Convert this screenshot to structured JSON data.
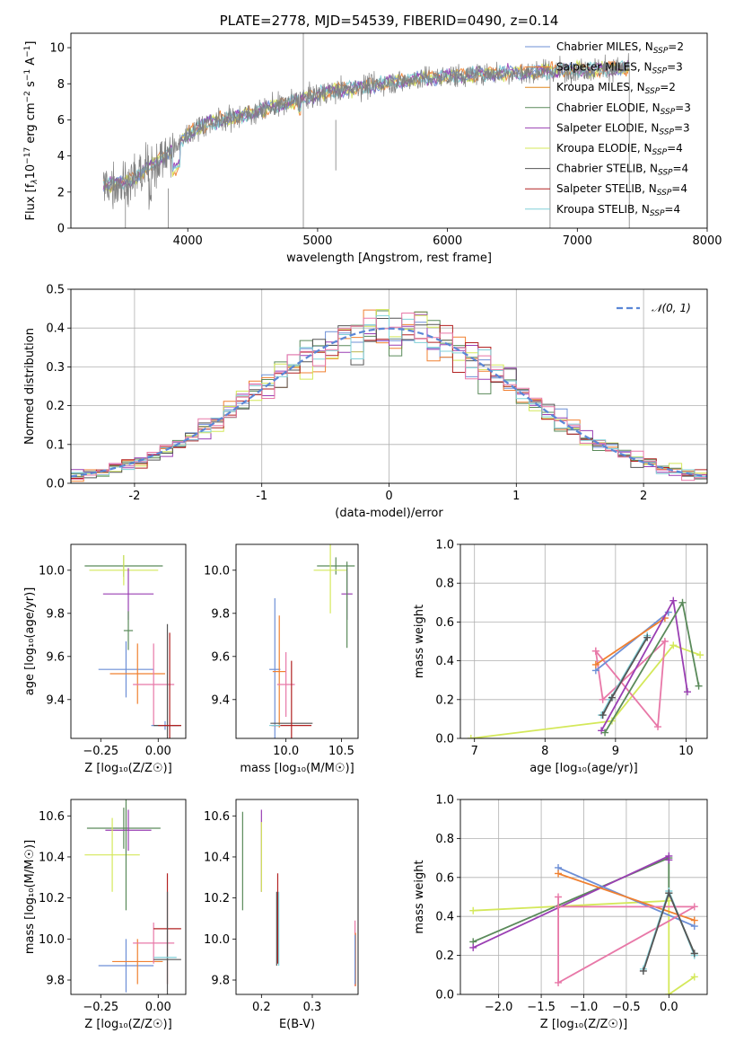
{
  "colors": {
    "Chabrier MILES": "#6d8fd6",
    "Salpeter MILES": "#f08030",
    "Kroupa MILES": "#e08820",
    "Chabrier ELODIE": "#5a8a5a",
    "Salpeter ELODIE": "#9a3fb3",
    "Kroupa ELODIE": "#d4e85a",
    "Chabrier STELIB": "#555555",
    "Salpeter STELIB": "#b22222",
    "Kroupa STELIB": "#80d0d8",
    "pink": "#e878a8",
    "dashed": "#5a86d6"
  },
  "chart_data": [
    {
      "id": "spectrum",
      "type": "line",
      "title": "PLATE=2778, MJD=54539, FIBERID=0490, z=0.14",
      "xlabel": "wavelength [Angstrom, rest frame]",
      "ylabel_parts": [
        "Flux [f",
        "λ",
        "10",
        "−17",
        " erg cm",
        "−2",
        " s",
        "−1",
        " A",
        "−1",
        "]"
      ],
      "xlim": [
        3100,
        8000
      ],
      "ylim": [
        0,
        10.8
      ],
      "xticks": [
        4000,
        5000,
        6000,
        7000,
        8000
      ],
      "yticks": [
        0,
        2,
        4,
        6,
        8,
        10
      ],
      "continuum_x": [
        3350,
        3500,
        3600,
        3700,
        3800,
        3900,
        4000,
        4100,
        4200,
        4400,
        4600,
        4800,
        4900,
        5000,
        5200,
        5400,
        5600,
        5800,
        6000,
        6200,
        6400,
        6600,
        6800,
        7000,
        7200,
        7400
      ],
      "continuum_y": [
        2.4,
        2.5,
        2.8,
        3.4,
        3.9,
        4.4,
        5.2,
        5.7,
        5.9,
        6.2,
        6.6,
        7.0,
        7.2,
        7.4,
        7.7,
        7.9,
        8.1,
        8.3,
        8.4,
        8.5,
        8.6,
        8.6,
        8.7,
        8.8,
        8.8,
        8.9
      ],
      "legend": [
        {
          "label": "Chabrier MILES, N",
          "sub": "SSP",
          "eq": "=2",
          "color_key": "Chabrier MILES"
        },
        {
          "label": "Salpeter MILES, N",
          "sub": "SSP",
          "eq": "=3",
          "color_key": "Salpeter MILES"
        },
        {
          "label": "Kroupa MILES, N",
          "sub": "SSP",
          "eq": "=2",
          "color_key": "Kroupa MILES"
        },
        {
          "label": "Chabrier ELODIE, N",
          "sub": "SSP",
          "eq": "=3",
          "color_key": "Chabrier ELODIE"
        },
        {
          "label": "Salpeter ELODIE, N",
          "sub": "SSP",
          "eq": "=3",
          "color_key": "Salpeter ELODIE"
        },
        {
          "label": "Kroupa ELODIE, N",
          "sub": "SSP",
          "eq": "=4",
          "color_key": "Kroupa ELODIE"
        },
        {
          "label": "Chabrier STELIB, N",
          "sub": "SSP",
          "eq": "=4",
          "color_key": "Chabrier STELIB"
        },
        {
          "label": "Salpeter STELIB, N",
          "sub": "SSP",
          "eq": "=4",
          "color_key": "Salpeter STELIB"
        },
        {
          "label": "Kroupa STELIB, N",
          "sub": "SSP",
          "eq": "=4",
          "color_key": "Kroupa STELIB"
        }
      ]
    },
    {
      "id": "residuals",
      "type": "line",
      "xlabel": "(data-model)/error",
      "ylabel": "Normed distribution",
      "xlim": [
        -2.5,
        2.5
      ],
      "ylim": [
        0,
        0.5
      ],
      "xticks": [
        -2,
        -1,
        0,
        1,
        2
      ],
      "yticks": [
        0.0,
        0.1,
        0.2,
        0.3,
        0.4,
        0.5
      ],
      "legend_label": "𝒩(0, 1)",
      "grid": true
    },
    {
      "id": "age_vs_Z",
      "type": "scatter",
      "xlabel": "Z [log₁₀(Z/Z☉)]",
      "ylabel": "age  [log₁₀(age/yr)]",
      "xlim": [
        -0.38,
        0.12
      ],
      "ylim": [
        9.22,
        10.12
      ],
      "xticks": [
        -0.25,
        0.0
      ],
      "xticklabels": [
        "−0.25",
        "0.00"
      ],
      "yticks": [
        9.4,
        9.6,
        9.8,
        10.0
      ],
      "points": [
        {
          "x": -0.15,
          "y": 10.02,
          "xerr": 0.17,
          "yerr": 0.05,
          "c": "Chabrier ELODIE"
        },
        {
          "x": -0.15,
          "y": 10.0,
          "xerr": 0.15,
          "yerr": 0.07,
          "c": "Kroupa ELODIE"
        },
        {
          "x": -0.13,
          "y": 9.89,
          "xerr": 0.11,
          "yerr": 0.12,
          "c": "Salpeter ELODIE"
        },
        {
          "x": -0.13,
          "y": 9.72,
          "xerr": 0.02,
          "yerr": 0.09,
          "c": "Chabrier ELODIE"
        },
        {
          "x": -0.14,
          "y": 9.54,
          "xerr": 0.12,
          "yerr": 0.13,
          "c": "Chabrier MILES"
        },
        {
          "x": -0.09,
          "y": 9.52,
          "xerr": 0.12,
          "yerr": 0.14,
          "c": "Salpeter MILES"
        },
        {
          "x": -0.02,
          "y": 9.47,
          "xerr": 0.09,
          "yerr": 0.19,
          "c": "pink"
        },
        {
          "x": 0.03,
          "y": 9.28,
          "xerr": 0.06,
          "yerr": 0.02,
          "c": "Chabrier MILES"
        },
        {
          "x": 0.04,
          "y": 9.28,
          "xerr": 0.06,
          "yerr": 0.47,
          "c": "Chabrier STELIB"
        },
        {
          "x": 0.05,
          "y": 9.28,
          "xerr": 0.05,
          "yerr": 0.43,
          "c": "Salpeter STELIB"
        }
      ]
    },
    {
      "id": "age_vs_mass",
      "type": "scatter",
      "xlabel": "mass [log₁₀(M/M☉)]",
      "xlim": [
        9.55,
        10.65
      ],
      "ylim": [
        9.22,
        10.12
      ],
      "xticks": [
        10.0,
        10.5
      ],
      "xticklabels": [
        "10.0",
        "10.5"
      ],
      "yticks": [
        9.4,
        9.6,
        9.8,
        10.0
      ],
      "points": [
        {
          "x": 10.45,
          "y": 10.02,
          "xerr": 0.17,
          "yerr": 0.04,
          "c": "Chabrier ELODIE"
        },
        {
          "x": 10.4,
          "y": 10.0,
          "xerr": 0.15,
          "yerr": 0.2,
          "c": "Kroupa ELODIE"
        },
        {
          "x": 10.55,
          "y": 9.89,
          "xerr": 0.05,
          "yerr": 0.12,
          "c": "Salpeter ELODIE"
        },
        {
          "x": 10.55,
          "y": 9.84,
          "xerr": 0.0,
          "yerr": 0.2,
          "c": "Chabrier ELODIE"
        },
        {
          "x": 9.9,
          "y": 9.54,
          "xerr": 0.05,
          "yerr": 0.33,
          "c": "Chabrier MILES"
        },
        {
          "x": 9.94,
          "y": 9.53,
          "xerr": 0.06,
          "yerr": 0.26,
          "c": "Salpeter MILES"
        },
        {
          "x": 10.0,
          "y": 9.47,
          "xerr": 0.08,
          "yerr": 0.15,
          "c": "pink"
        },
        {
          "x": 10.05,
          "y": 9.29,
          "xerr": 0.19,
          "yerr": 0.0,
          "c": "Chabrier STELIB"
        },
        {
          "x": 10.05,
          "y": 9.28,
          "xerr": 0.18,
          "yerr": 0.3,
          "c": "Salpeter STELIB"
        },
        {
          "x": 9.9,
          "y": 9.28,
          "xerr": 0.05,
          "yerr": 0.0,
          "c": "Kroupa STELIB"
        }
      ]
    },
    {
      "id": "weight_vs_age",
      "type": "line",
      "xlabel": "age  [log₁₀(age/yr)]",
      "ylabel": "mass weight",
      "xlim": [
        6.8,
        10.3
      ],
      "ylim": [
        0.0,
        1.0
      ],
      "xticks": [
        7,
        8,
        9,
        10
      ],
      "yticks": [
        0.0,
        0.2,
        0.4,
        0.6,
        0.8,
        1.0
      ],
      "grid": true,
      "series": [
        {
          "c": "Kroupa ELODIE",
          "x": [
            6.95,
            8.95,
            9.82,
            10.2
          ],
          "y": [
            0.0,
            0.09,
            0.48,
            0.43
          ]
        },
        {
          "c": "pink",
          "x": [
            8.72,
            9.6,
            9.7,
            8.82,
            8.72
          ],
          "y": [
            0.45,
            0.06,
            0.5,
            0.2,
            0.45
          ]
        },
        {
          "c": "Chabrier MILES",
          "x": [
            8.72,
            9.75
          ],
          "y": [
            0.35,
            0.65
          ]
        },
        {
          "c": "Salpeter MILES",
          "x": [
            8.72,
            9.7
          ],
          "y": [
            0.38,
            0.62
          ]
        },
        {
          "c": "Salpeter ELODIE",
          "x": [
            8.8,
            9.82,
            10.02
          ],
          "y": [
            0.04,
            0.71,
            0.24
          ]
        },
        {
          "c": "Chabrier ELODIE",
          "x": [
            8.85,
            9.95,
            10.18
          ],
          "y": [
            0.03,
            0.7,
            0.27
          ]
        },
        {
          "c": "Kroupa STELIB",
          "x": [
            8.8,
            8.92,
            9.45
          ],
          "y": [
            0.12,
            0.2,
            0.53
          ]
        },
        {
          "c": "Chabrier STELIB",
          "x": [
            8.82,
            8.95,
            9.45
          ],
          "y": [
            0.12,
            0.21,
            0.52
          ]
        }
      ]
    },
    {
      "id": "mass_vs_Z",
      "type": "scatter",
      "xlabel": "Z [log₁₀(Z/Z☉)]",
      "ylabel": "mass [log₁₀(M/M☉)]",
      "xlim": [
        -0.38,
        0.12
      ],
      "ylim": [
        9.73,
        10.68
      ],
      "xticks": [
        -0.25,
        0.0
      ],
      "xticklabels": [
        "−0.25",
        "0.00"
      ],
      "yticks": [
        9.8,
        10.0,
        10.2,
        10.4,
        10.6
      ],
      "points": [
        {
          "x": -0.15,
          "y": 10.54,
          "xerr": 0.16,
          "yerr": 0.1,
          "c": "Chabrier ELODIE"
        },
        {
          "x": -0.13,
          "y": 10.53,
          "xerr": 0.1,
          "yerr": 0.1,
          "c": "Salpeter ELODIE"
        },
        {
          "x": -0.2,
          "y": 10.41,
          "xerr": 0.12,
          "yerr": 0.18,
          "c": "Kroupa ELODIE"
        },
        {
          "x": -0.14,
          "y": 10.41,
          "xerr": 0.0,
          "yerr": 0.27,
          "c": "Chabrier ELODIE"
        },
        {
          "x": -0.14,
          "y": 9.87,
          "xerr": 0.12,
          "yerr": 0.13,
          "c": "Chabrier MILES"
        },
        {
          "x": -0.09,
          "y": 9.89,
          "xerr": 0.11,
          "yerr": 0.11,
          "c": "Salpeter MILES"
        },
        {
          "x": -0.02,
          "y": 9.98,
          "xerr": 0.09,
          "yerr": 0.1,
          "c": "pink"
        },
        {
          "x": 0.04,
          "y": 10.05,
          "xerr": 0.06,
          "yerr": 0.27,
          "c": "Salpeter STELIB"
        },
        {
          "x": 0.04,
          "y": 9.9,
          "xerr": 0.06,
          "yerr": 0.33,
          "c": "Chabrier STELIB"
        },
        {
          "x": 0.03,
          "y": 9.91,
          "xerr": 0.05,
          "yerr": 0.0,
          "c": "Kroupa STELIB"
        }
      ]
    },
    {
      "id": "mass_vs_EBV",
      "type": "scatter",
      "xlabel": "E(B-V)",
      "xlim": [
        0.15,
        0.39
      ],
      "ylim": [
        9.73,
        10.68
      ],
      "xticks": [
        0.2,
        0.3
      ],
      "xticklabels": [
        "0.2",
        "0.3"
      ],
      "yticks": [
        9.8,
        10.0,
        10.2,
        10.4,
        10.6
      ],
      "points": [
        {
          "x": 0.163,
          "y": 10.38,
          "xerr": 0.0,
          "yerr": 0.24,
          "c": "Chabrier ELODIE"
        },
        {
          "x": 0.2,
          "y": 10.43,
          "xerr": 0.0,
          "yerr": 0.2,
          "c": "Salpeter ELODIE"
        },
        {
          "x": 0.2,
          "y": 10.4,
          "xerr": 0.0,
          "yerr": 0.17,
          "c": "Kroupa ELODIE"
        },
        {
          "x": 0.232,
          "y": 10.1,
          "xerr": 0.0,
          "yerr": 0.22,
          "c": "Salpeter STELIB"
        },
        {
          "x": 0.23,
          "y": 10.05,
          "xerr": 0.0,
          "yerr": 0.18,
          "c": "Chabrier STELIB"
        },
        {
          "x": 0.234,
          "y": 10.05,
          "xerr": 0.0,
          "yerr": 0.18,
          "c": "Kroupa STELIB"
        },
        {
          "x": 0.384,
          "y": 9.93,
          "xerr": 0.0,
          "yerr": 0.16,
          "c": "pink"
        },
        {
          "x": 0.385,
          "y": 9.9,
          "xerr": 0.0,
          "yerr": 0.13,
          "c": "Salpeter MILES"
        },
        {
          "x": 0.384,
          "y": 9.9,
          "xerr": 0.0,
          "yerr": 0.12,
          "c": "Chabrier MILES"
        }
      ]
    },
    {
      "id": "weight_vs_Z",
      "type": "line",
      "xlabel": "Z [log₁₀(Z/Z☉)]",
      "ylabel": "mass weight",
      "xlim": [
        -2.45,
        0.45
      ],
      "ylim": [
        0.0,
        1.0
      ],
      "xticks": [
        -2.0,
        -1.5,
        -1.0,
        -0.5,
        0.0
      ],
      "xticklabels": [
        "−2.0",
        "−1.5",
        "−1.0",
        "−0.5",
        "0.0"
      ],
      "yticks": [
        0.0,
        0.2,
        0.4,
        0.6,
        0.8,
        1.0
      ],
      "grid": true,
      "series": [
        {
          "c": "Kroupa ELODIE",
          "x": [
            -2.3,
            0.0,
            0.0,
            0.3
          ],
          "y": [
            0.43,
            0.48,
            0.0,
            0.09
          ]
        },
        {
          "c": "Chabrier ELODIE",
          "x": [
            -2.3,
            0.0,
            0.0,
            0.3
          ],
          "y": [
            0.27,
            0.7,
            0.52,
            0.21
          ]
        },
        {
          "c": "Salpeter ELODIE",
          "x": [
            -2.3,
            0.0,
            0.0
          ],
          "y": [
            0.24,
            0.71,
            0.69
          ]
        },
        {
          "c": "Chabrier MILES",
          "x": [
            -1.3,
            0.3
          ],
          "y": [
            0.65,
            0.35
          ]
        },
        {
          "c": "Salpeter MILES",
          "x": [
            -1.3,
            0.3
          ],
          "y": [
            0.62,
            0.38
          ]
        },
        {
          "c": "pink",
          "x": [
            -1.3,
            -1.3,
            0.3,
            -1.3
          ],
          "y": [
            0.5,
            0.06,
            0.45,
            0.45
          ]
        },
        {
          "c": "Kroupa STELIB",
          "x": [
            -0.3,
            0.0,
            0.3
          ],
          "y": [
            0.13,
            0.53,
            0.2
          ]
        },
        {
          "c": "Chabrier STELIB",
          "x": [
            -0.3,
            0.0,
            0.3
          ],
          "y": [
            0.12,
            0.52,
            0.21
          ]
        }
      ]
    }
  ]
}
